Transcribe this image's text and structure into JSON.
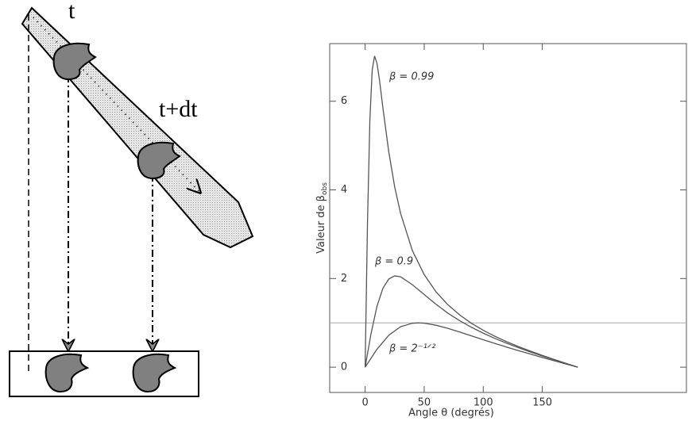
{
  "diagram": {
    "labels": [
      "t",
      "t+dt"
    ]
  },
  "chart_data": {
    "type": "line",
    "xlabel": "Angle θ (degrés)",
    "ylabel": "Valeur de β",
    "ylabel_sub": "obs",
    "xlim": [
      -30,
      272
    ],
    "ylim": [
      -0.57,
      7.3
    ],
    "xticks": [
      0,
      50,
      100,
      150
    ],
    "yticks": [
      0,
      2,
      4,
      6
    ],
    "hline": 1,
    "series": [
      {
        "name": "β = 0.99",
        "color": "#555555",
        "x": [
          0,
          2,
          4,
          6,
          8,
          10,
          12,
          15,
          20,
          25,
          30,
          40,
          50,
          60,
          70,
          80,
          90,
          100,
          110,
          120,
          130,
          140,
          150,
          160,
          170,
          180
        ],
        "values": [
          0,
          3.26,
          5.57,
          6.71,
          7.02,
          6.86,
          6.51,
          5.86,
          4.86,
          4.07,
          3.47,
          2.63,
          2.09,
          1.7,
          1.41,
          1.18,
          0.99,
          0.832,
          0.695,
          0.573,
          0.463,
          0.362,
          0.267,
          0.175,
          0.087,
          0
        ]
      },
      {
        "name": "β = 0.9",
        "color": "#555555",
        "x": [
          0,
          5,
          10,
          15,
          20,
          25,
          30,
          40,
          50,
          60,
          70,
          80,
          90,
          100,
          110,
          120,
          130,
          140,
          150,
          160,
          170,
          180
        ],
        "values": [
          0,
          0.759,
          1.37,
          1.78,
          1.99,
          2.06,
          2.04,
          1.86,
          1.64,
          1.42,
          1.22,
          1.05,
          0.9,
          0.767,
          0.647,
          0.538,
          0.437,
          0.342,
          0.253,
          0.167,
          0.083,
          0
        ]
      },
      {
        "name": "β = 2⁻¹ᐟ²",
        "color": "#555555",
        "x": [
          0,
          10,
          20,
          30,
          40,
          45,
          50,
          60,
          70,
          80,
          90,
          100,
          110,
          120,
          130,
          140,
          150,
          160,
          170,
          180
        ],
        "values": [
          0,
          0.404,
          0.721,
          0.912,
          0.992,
          1.0,
          0.993,
          0.947,
          0.876,
          0.794,
          0.707,
          0.62,
          0.535,
          0.452,
          0.372,
          0.295,
          0.219,
          0.145,
          0.072,
          0
        ]
      }
    ]
  }
}
